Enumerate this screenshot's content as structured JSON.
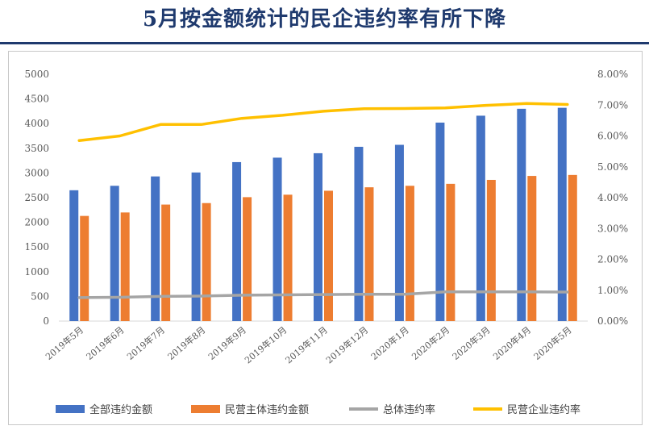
{
  "title": "5月按金额统计的民企违约率有所下降",
  "chart_data": {
    "type": "bar+line",
    "categories": [
      "2019年5月",
      "2019年6月",
      "2019年7月",
      "2019年8月",
      "2019年9月",
      "2019年10月",
      "2019年11月",
      "2019年12月",
      "2020年1月",
      "2020年2月",
      "2020年3月",
      "2020年4月",
      "2020年5月"
    ],
    "y_left": {
      "min": 0,
      "max": 5000,
      "step": 500,
      "ticks": [
        "0",
        "500",
        "1000",
        "1500",
        "2000",
        "2500",
        "3000",
        "3500",
        "4000",
        "4500",
        "5000"
      ]
    },
    "y_right": {
      "min": 0,
      "max": 0.08,
      "step": 0.01,
      "ticks": [
        "0.00%",
        "1.00%",
        "2.00%",
        "3.00%",
        "4.00%",
        "5.00%",
        "6.00%",
        "7.00%",
        "8.00%"
      ]
    },
    "series": [
      {
        "name": "全部违约金额",
        "type": "bar",
        "axis": "left",
        "color": "#4472C4",
        "values": [
          2650,
          2740,
          2930,
          3010,
          3220,
          3310,
          3400,
          3530,
          3570,
          4020,
          4160,
          4300,
          4320
        ]
      },
      {
        "name": "民营主体违约金额",
        "type": "bar",
        "axis": "left",
        "color": "#ED7D31",
        "values": [
          2130,
          2200,
          2360,
          2390,
          2510,
          2560,
          2640,
          2710,
          2740,
          2780,
          2860,
          2940,
          2960
        ]
      },
      {
        "name": "总体违约率",
        "type": "line",
        "axis": "right",
        "color": "#A5A5A5",
        "values": [
          0.0076,
          0.0077,
          0.008,
          0.0081,
          0.0084,
          0.0085,
          0.0086,
          0.0087,
          0.0087,
          0.0095,
          0.0095,
          0.0095,
          0.0094
        ]
      },
      {
        "name": "民营企业违约率",
        "type": "line",
        "axis": "right",
        "color": "#FFC000",
        "values": [
          0.0585,
          0.06,
          0.0637,
          0.0637,
          0.0657,
          0.0667,
          0.068,
          0.0688,
          0.0689,
          0.0691,
          0.0699,
          0.0705,
          0.0702
        ]
      }
    ],
    "legend_position": "bottom",
    "grid": false
  }
}
